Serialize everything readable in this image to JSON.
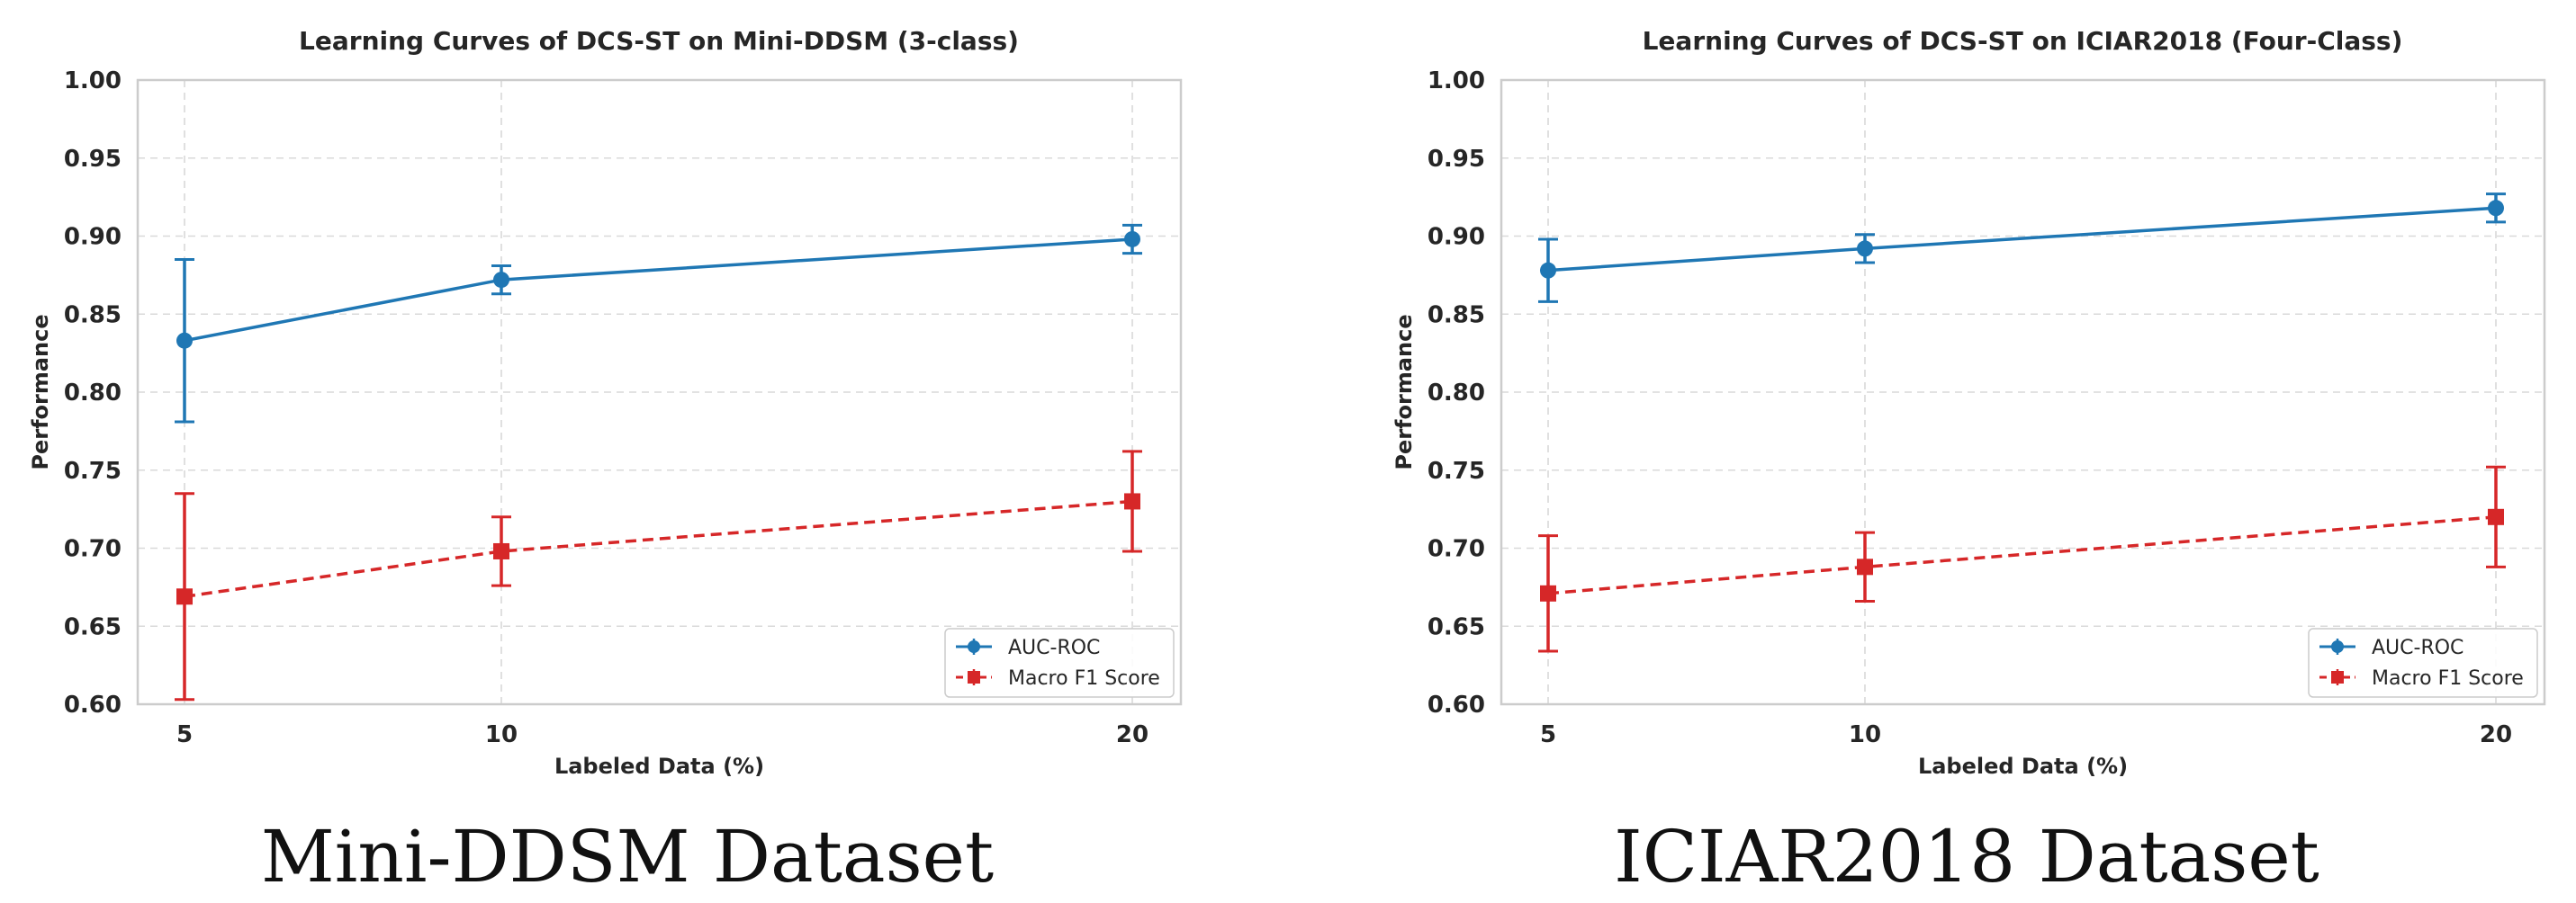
{
  "chart_data": [
    {
      "type": "line",
      "title": "Learning Curves of DCS-ST on Mini-DDSM (3-class)",
      "xlabel": "Labeled Data (%)",
      "ylabel": "Performance",
      "x": [
        5,
        10,
        20
      ],
      "x_tick_labels": [
        "5",
        "10",
        "20"
      ],
      "ylim": [
        0.6,
        1.0
      ],
      "y_ticks": [
        0.6,
        0.65,
        0.7,
        0.75,
        0.8,
        0.85,
        0.9,
        0.95,
        1.0
      ],
      "y_tick_labels": [
        "0.60",
        "0.65",
        "0.70",
        "0.75",
        "0.80",
        "0.85",
        "0.90",
        "0.95",
        "1.00"
      ],
      "grid": true,
      "legend_position": "lower-right",
      "caption": "Mini-DDSM Dataset",
      "series": [
        {
          "name": "AUC-ROC",
          "color": "#1f77b4",
          "marker": "circle",
          "linestyle": "solid",
          "values": [
            0.833,
            0.872,
            0.898
          ],
          "errors": [
            0.052,
            0.009,
            0.009
          ]
        },
        {
          "name": "Macro F1 Score",
          "color": "#d62728",
          "marker": "square",
          "linestyle": "dashed",
          "values": [
            0.669,
            0.698,
            0.73
          ],
          "errors": [
            0.066,
            0.022,
            0.032
          ]
        }
      ]
    },
    {
      "type": "line",
      "title": "Learning Curves of DCS-ST on ICIAR2018 (Four-Class)",
      "xlabel": "Labeled Data (%)",
      "ylabel": "Performance",
      "x": [
        5,
        10,
        20
      ],
      "x_tick_labels": [
        "5",
        "10",
        "20"
      ],
      "ylim": [
        0.6,
        1.0
      ],
      "y_ticks": [
        0.6,
        0.65,
        0.7,
        0.75,
        0.8,
        0.85,
        0.9,
        0.95,
        1.0
      ],
      "y_tick_labels": [
        "0.60",
        "0.65",
        "0.70",
        "0.75",
        "0.80",
        "0.85",
        "0.90",
        "0.95",
        "1.00"
      ],
      "grid": true,
      "legend_position": "lower-right",
      "caption": "ICIAR2018 Dataset",
      "series": [
        {
          "name": "AUC-ROC",
          "color": "#1f77b4",
          "marker": "circle",
          "linestyle": "solid",
          "values": [
            0.878,
            0.892,
            0.918
          ],
          "errors": [
            0.02,
            0.009,
            0.009
          ]
        },
        {
          "name": "Macro F1 Score",
          "color": "#d62728",
          "marker": "square",
          "linestyle": "dashed",
          "values": [
            0.671,
            0.688,
            0.72
          ],
          "errors": [
            0.037,
            0.022,
            0.032
          ]
        }
      ]
    }
  ]
}
